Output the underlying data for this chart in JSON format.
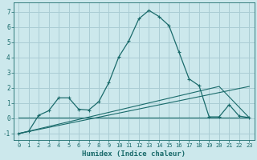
{
  "xlabel": "Humidex (Indice chaleur)",
  "background_color": "#cce8ec",
  "grid_color": "#aacdd4",
  "line_color": "#1a6b6b",
  "xlim": [
    -0.5,
    23.5
  ],
  "ylim": [
    -1.4,
    7.6
  ],
  "yticks": [
    -1,
    0,
    1,
    2,
    3,
    4,
    5,
    6,
    7
  ],
  "xticks": [
    0,
    1,
    2,
    3,
    4,
    5,
    6,
    7,
    8,
    9,
    10,
    11,
    12,
    13,
    14,
    15,
    16,
    17,
    18,
    19,
    20,
    21,
    22,
    23
  ],
  "series1_x": [
    0,
    1,
    2,
    3,
    4,
    5,
    6,
    7,
    8,
    9,
    10,
    11,
    12,
    13,
    14,
    15,
    16,
    17,
    18,
    19,
    20,
    21,
    22,
    23
  ],
  "series1_y": [
    -1.0,
    -0.85,
    0.2,
    0.5,
    1.35,
    1.35,
    0.6,
    0.55,
    1.1,
    2.35,
    4.05,
    5.1,
    6.55,
    7.1,
    6.7,
    6.1,
    4.35,
    2.6,
    2.15,
    0.1,
    0.1,
    0.9,
    0.15,
    0.05
  ],
  "series2_x": [
    0,
    23
  ],
  "series2_y": [
    -1.0,
    2.1
  ],
  "series3_x": [
    0,
    20,
    23
  ],
  "series3_y": [
    -1.0,
    2.1,
    0.05
  ],
  "series4_x": [
    0,
    15,
    19,
    23
  ],
  "series4_y": [
    0.05,
    0.05,
    0.05,
    0.05
  ]
}
